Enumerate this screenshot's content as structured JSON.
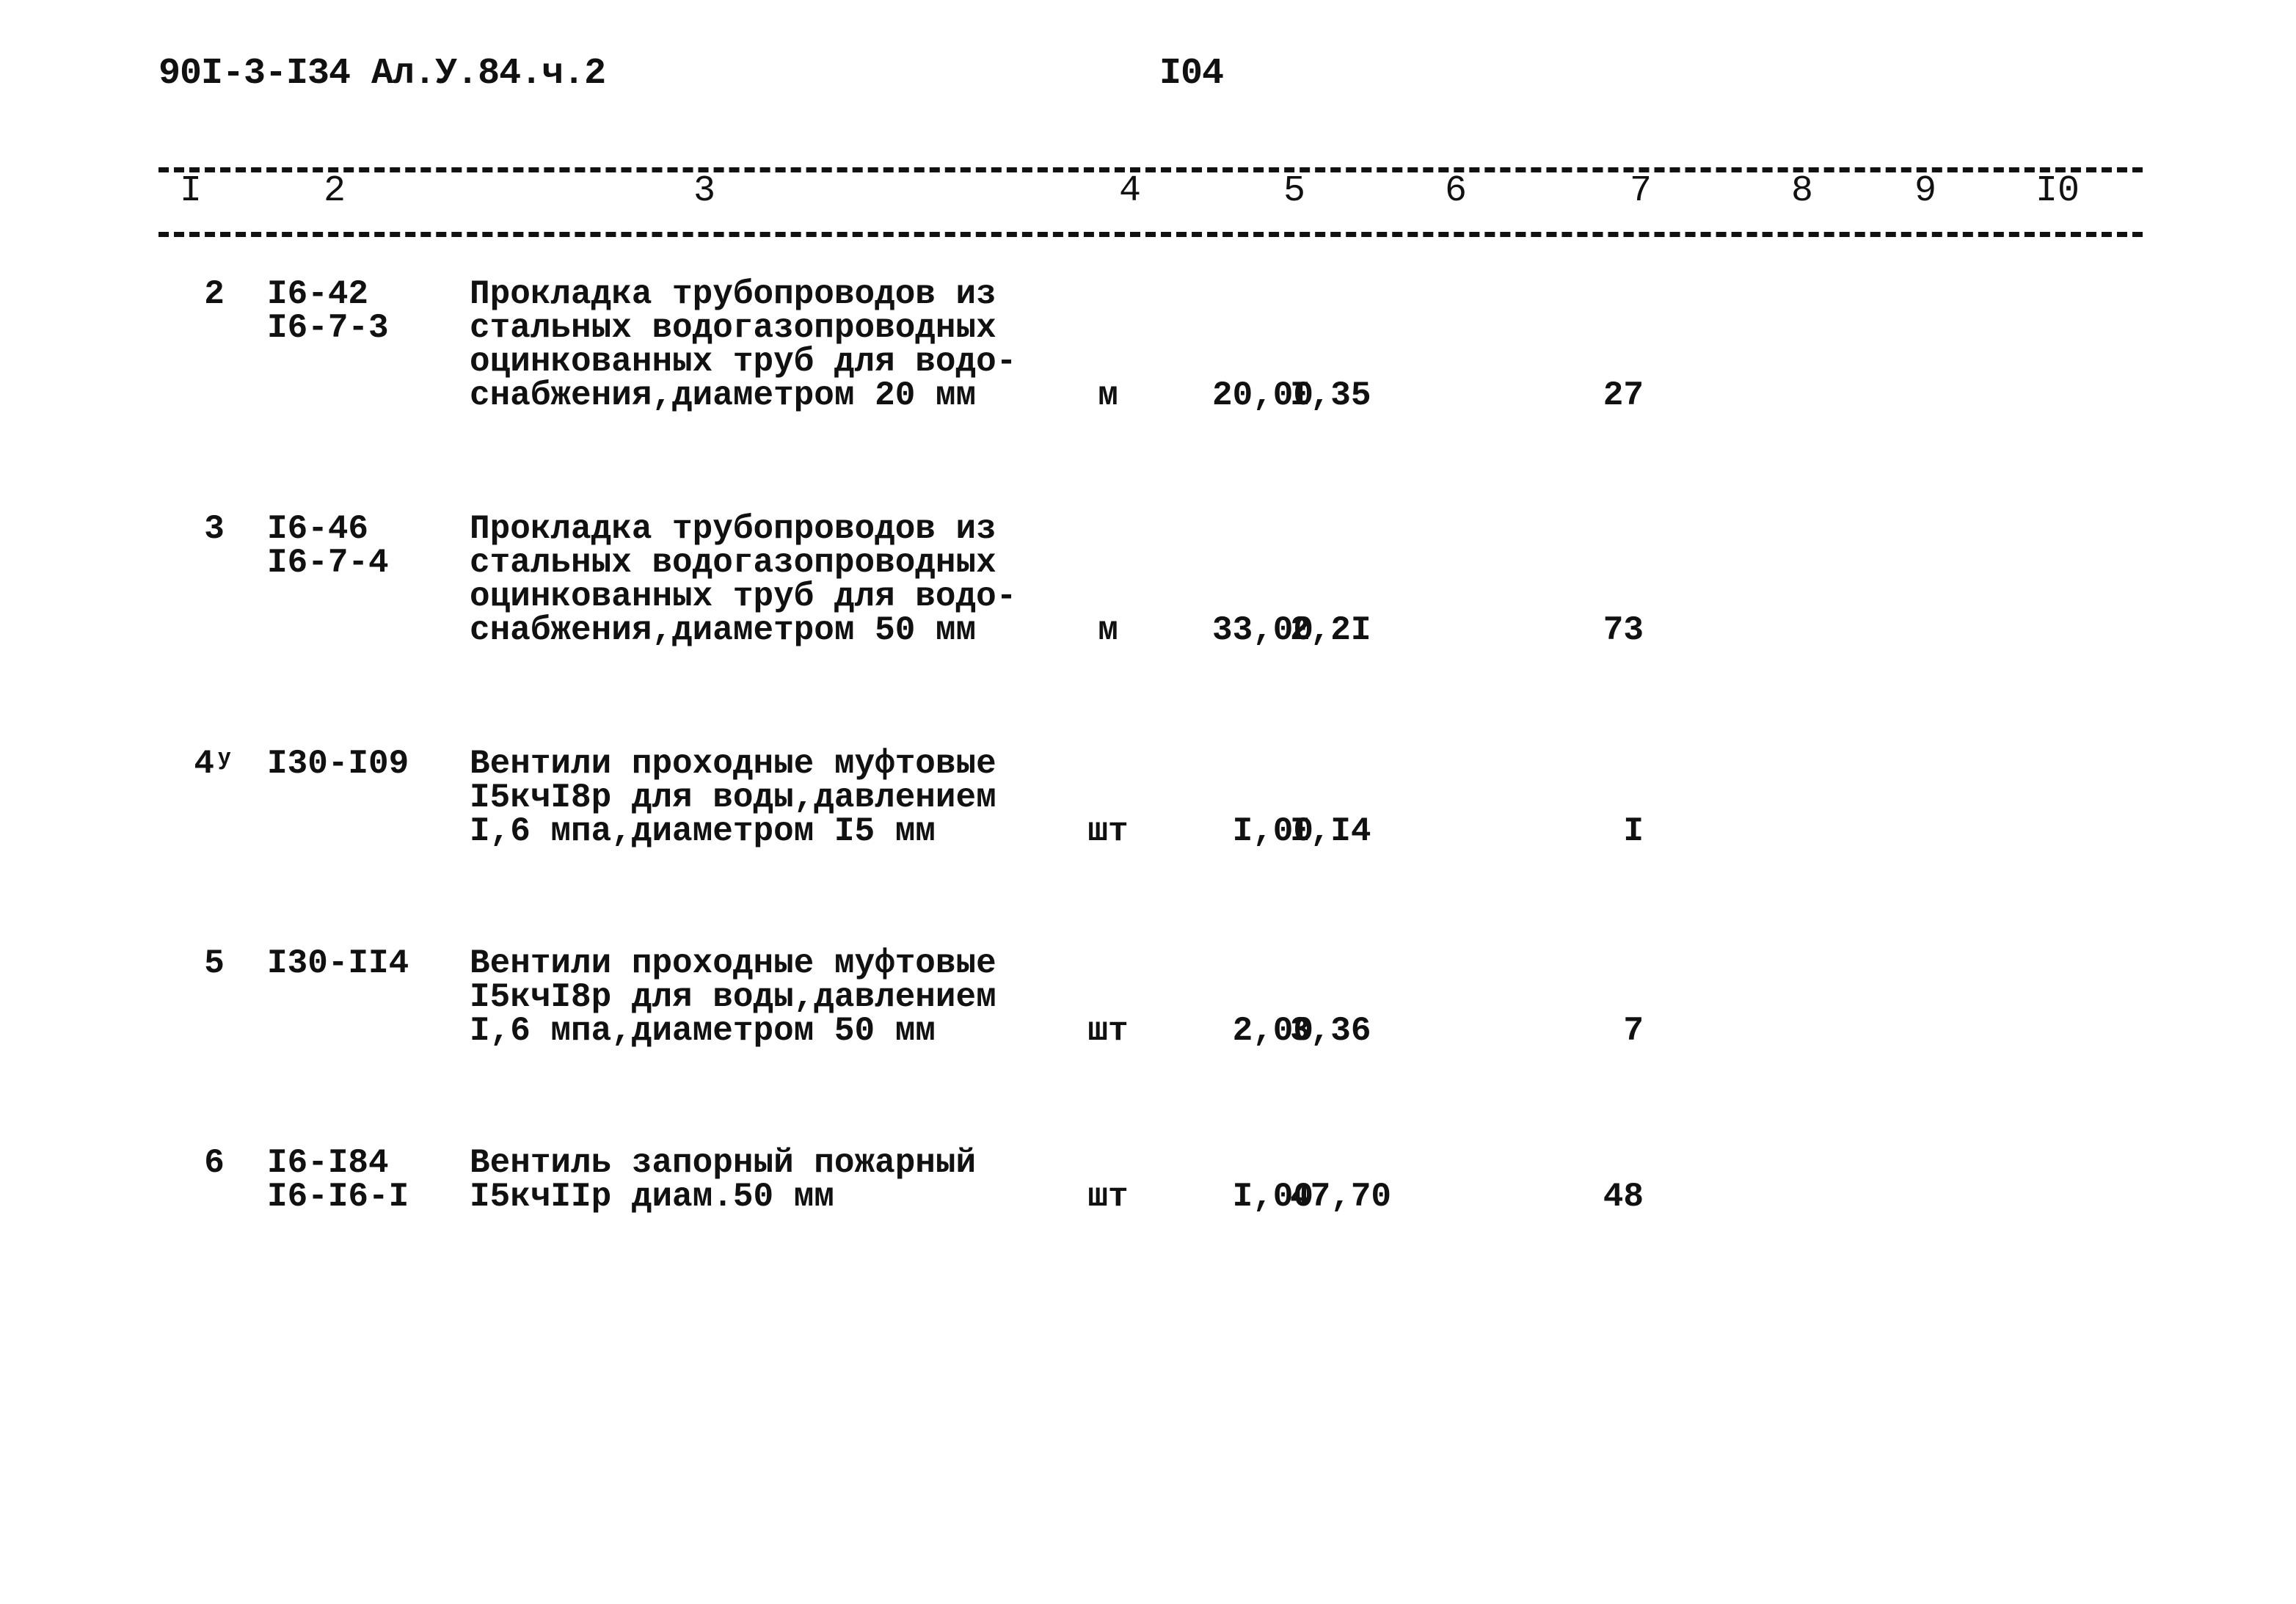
{
  "header": {
    "doc_code": "90I-3-I34  Ал.У.84.ч.2",
    "page_number": "I04"
  },
  "columns": [
    "I",
    "2",
    "3",
    "4",
    "5",
    "6",
    "7",
    "8",
    "9",
    "I0"
  ],
  "rows": [
    {
      "num": "2",
      "code": "I6-42\nI6-7-3",
      "desc": "Прокладка трубопроводов из\nстальных водогазопроводных\nоцинкованных труб для водо-\nснабжения,диаметром 20 мм",
      "unit": "м",
      "qty": "20,00",
      "price": "I,35",
      "total": "27"
    },
    {
      "num": "3",
      "code": "I6-46\nI6-7-4",
      "desc": "Прокладка трубопроводов из\nстальных водогазопроводных\nоцинкованных труб для водо-\nснабжения,диаметром 50 мм",
      "unit": "м",
      "qty": "33,00",
      "price": "2,2I",
      "total": "73"
    },
    {
      "num": "4ʸ",
      "code": "I30-I09",
      "desc": "Вентили проходные муфтовые\nI5кчI8р для воды,давлением\nI,6 мпа,диаметром I5 мм",
      "unit": "шт",
      "qty": "I,00",
      "price": "I,I4",
      "total": "I"
    },
    {
      "num": "5",
      "code": "I30-II4",
      "desc": "Вентили проходные муфтовые\nI5кчI8р для воды,давлением\nI,6 мпа,диаметром 50 мм",
      "unit": "шт",
      "qty": "2,00",
      "price": "3,36",
      "total": "7"
    },
    {
      "num": "6",
      "code": "I6-I84\nI6-I6-I",
      "desc": "Вентиль запорный пожарный\nI5кчIIр диам.50 мм",
      "unit": "шт",
      "qty": "I,00",
      "price": "47,70",
      "total": "48"
    }
  ]
}
